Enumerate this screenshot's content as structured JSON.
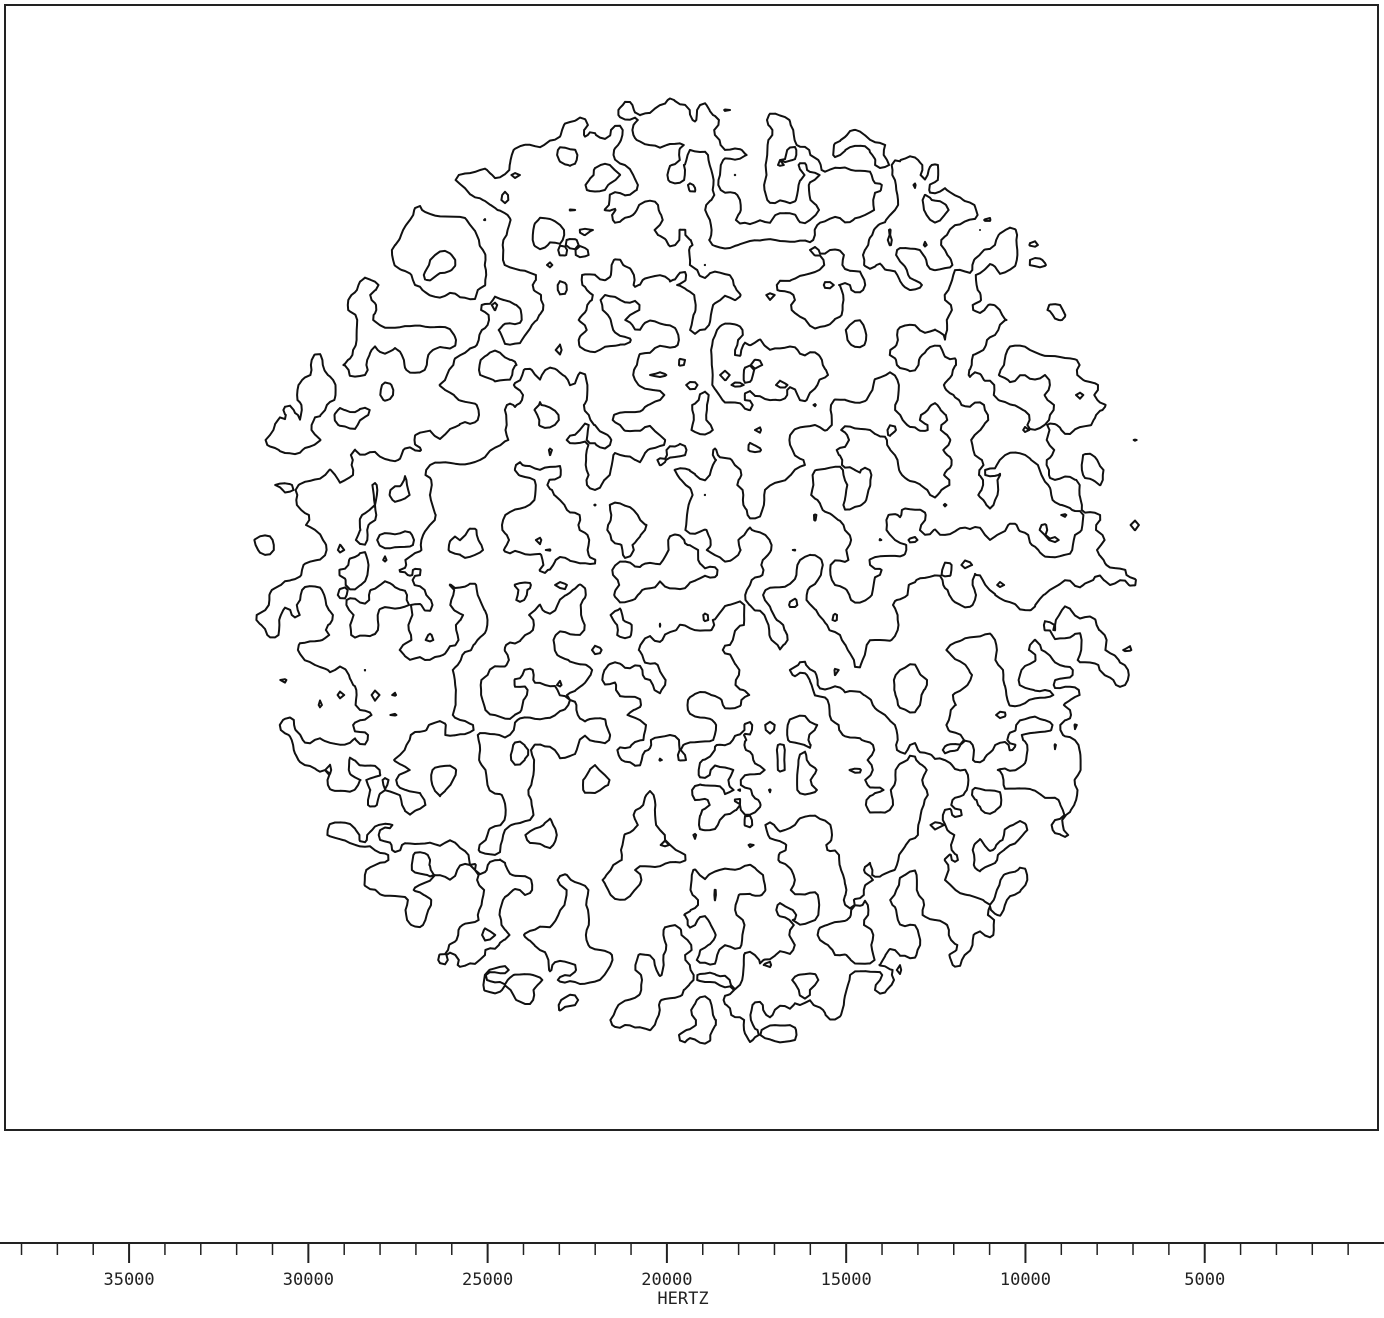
{
  "chart_data": {
    "type": "contour",
    "x_label": "HERTZ",
    "xlim": [
      38600,
      0
    ],
    "xticks": [
      35000,
      30000,
      25000,
      20000,
      15000,
      10000,
      5000
    ],
    "xticks_minor": [
      38000,
      37000,
      36000,
      34000,
      33000,
      32000,
      31000,
      29000,
      28000,
      27000,
      26000,
      24000,
      23000,
      22000,
      21000,
      19000,
      18000,
      17000,
      16000,
      14000,
      13000,
      12000,
      11000,
      9000,
      8000,
      7000,
      6000,
      4000,
      3000,
      2000,
      1000
    ]
  }
}
